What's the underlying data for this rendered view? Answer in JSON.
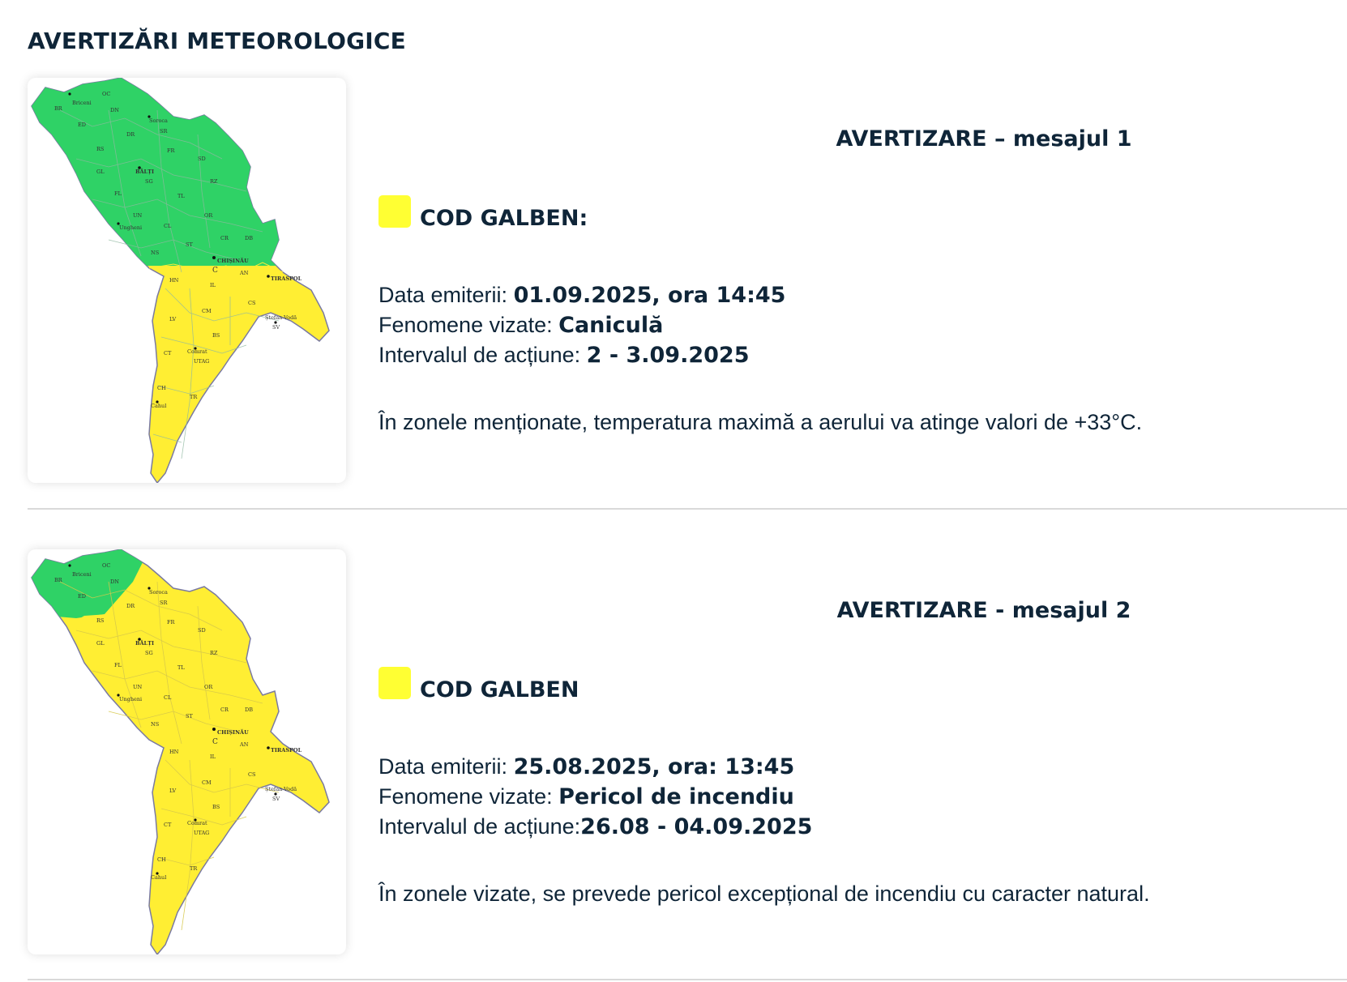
{
  "page": {
    "title": "AVERTIZĂRI METEOROLOGICE"
  },
  "colors": {
    "green_zone": "#2fd266",
    "yellow_zone": "#ffee33",
    "code_yellow": "#ffff33",
    "divider": "#d9d9d9",
    "text": "#0f2538"
  },
  "map_labels": {
    "districts": [
      "OC",
      "BR",
      "DN",
      "ED",
      "SR",
      "DR",
      "RS",
      "FR",
      "SD",
      "GL",
      "SG",
      "RZ",
      "FL",
      "TL",
      "UN",
      "OR",
      "CL",
      "ST",
      "NS",
      "CR",
      "DB",
      "AN",
      "HN",
      "IL",
      "CS",
      "CM",
      "LV",
      "SV",
      "BS",
      "CT",
      "UTAG",
      "CH",
      "TR"
    ],
    "cities": [
      "Briceni",
      "Soroca",
      "BĂLȚI",
      "Ungheni",
      "CHIȘINĂU",
      "TIRASPOL",
      "Ștefan-Vodă",
      "Comrat",
      "Cahul"
    ],
    "capital_marker": "C"
  },
  "warnings": [
    {
      "title": "AVERTIZARE – mesajul 1",
      "code_label": "COD GALBEN:",
      "code_color_name": "yellow",
      "issue_label": "Data emiterii: ",
      "issue_value": "01.09.2025, ora 14:45",
      "phenomena_label": "Fenomene vizate: ",
      "phenomena_value": "Caniculă",
      "interval_label": "Intervalul de acțiune: ",
      "interval_value": "2 - 3.09.2025",
      "description": "În zonele menționate, temperatura maximă a aerului va atinge valori de +33°C.",
      "map_green_districts": [
        "OC",
        "BR",
        "DN",
        "ED",
        "SR",
        "DR",
        "RS",
        "FR",
        "SD",
        "GL",
        "SG",
        "RZ",
        "FL",
        "TL",
        "UN",
        "OR",
        "CL",
        "ST",
        "NS",
        "CR"
      ]
    },
    {
      "title": "AVERTIZARE - mesajul 2",
      "code_label": "COD GALBEN",
      "code_color_name": "yellow",
      "issue_label": "Data emiterii: ",
      "issue_value": "25.08.2025, ora: 13:45",
      "phenomena_label": "Fenomene vizate: ",
      "phenomena_value": "Pericol de incendiu",
      "interval_label": "Intervalul de acțiune:",
      "interval_value": "26.08 - 04.09.2025",
      "description": "În zonele vizate, se prevede pericol excepțional de incendiu cu caracter natural.",
      "map_green_districts": [
        "OC",
        "BR",
        "DN",
        "ED"
      ]
    }
  ]
}
